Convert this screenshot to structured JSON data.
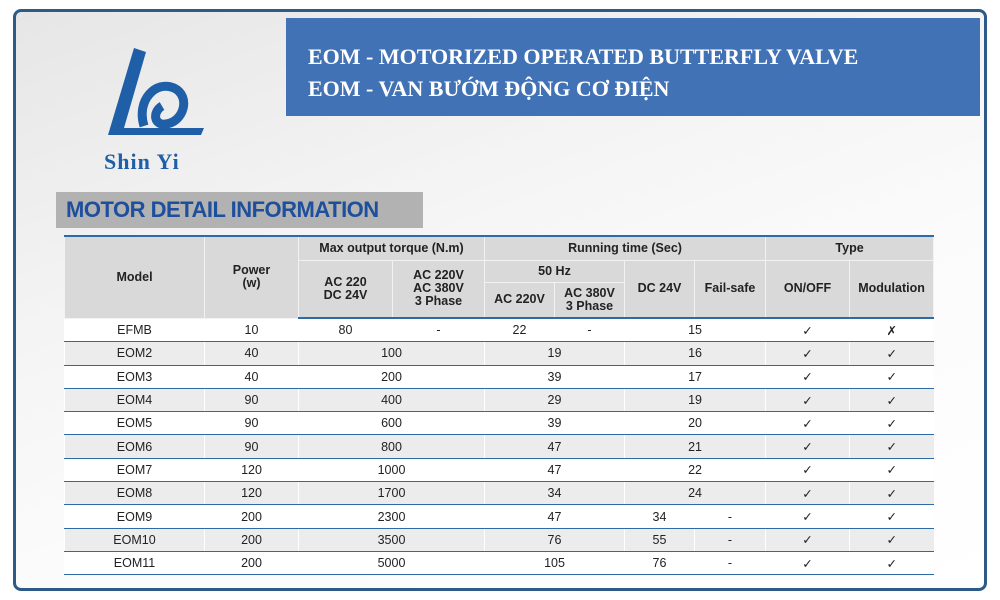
{
  "logo": {
    "text": "Shin Yi"
  },
  "header": {
    "title_lines": [
      "EOM - MOTORIZED OPERATED BUTTERFLY VALVE",
      "EOM - VAN BƯỚM ĐỘNG CƠ ĐIỆN"
    ]
  },
  "section_title": "MOTOR DETAIL INFORMATION",
  "table": {
    "header": {
      "model": "Model",
      "power": "Power\n(w)",
      "torque": "Max output torque (N.m)",
      "torque_ac220_dc24": "AC 220\nDC 24V",
      "torque_ac220_ac380": "AC 220V\nAC 380V\n3 Phase",
      "running": "Running time (Sec)",
      "hz50": "50 Hz",
      "run_ac220": "AC 220V",
      "run_ac380": "AC 380V\n3 Phase",
      "run_dc24": "DC 24V",
      "failsafe": "Fail-safe",
      "type": "Type",
      "onoff": "ON/OFF",
      "modulation": "Modulation"
    },
    "rows": [
      [
        "EFMB",
        10,
        80,
        "-",
        22,
        "-",
        15,
        "✓",
        "✗"
      ],
      [
        "EOM2",
        40,
        100,
        19,
        16,
        "✓",
        "✓"
      ],
      [
        "EOM3",
        40,
        200,
        39,
        17,
        "✓",
        "✓"
      ],
      [
        "EOM4",
        90,
        400,
        29,
        19,
        "✓",
        "✓"
      ],
      [
        "EOM5",
        90,
        600,
        39,
        20,
        "✓",
        "✓"
      ],
      [
        "EOM6",
        90,
        800,
        47,
        21,
        "✓",
        "✓"
      ],
      [
        "EOM7",
        120,
        1000,
        47,
        22,
        "✓",
        "✓"
      ],
      [
        "EOM8",
        120,
        1700,
        34,
        24,
        "✓",
        "✓"
      ],
      [
        "EOM9",
        200,
        2300,
        47,
        34,
        "-",
        "✓",
        "✓"
      ],
      [
        "EOM10",
        200,
        3500,
        76,
        55,
        "-",
        "✓",
        "✓"
      ],
      [
        "EOM11",
        200,
        5000,
        105,
        76,
        "-",
        "✓",
        "✓"
      ]
    ]
  }
}
